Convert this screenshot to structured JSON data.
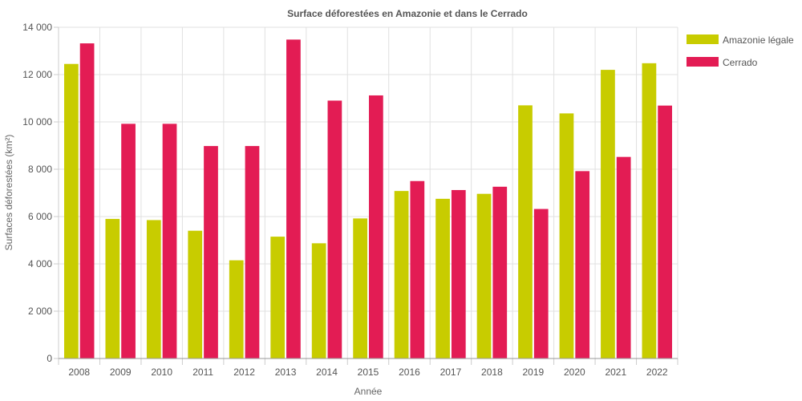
{
  "chart_data": {
    "type": "bar",
    "title": "Surface déforestées en Amazonie et dans le Cerrado",
    "xlabel": "Année",
    "ylabel": "Surfaces déforestées (km²)",
    "ylim": [
      0,
      14000
    ],
    "yticks": [
      0,
      2000,
      4000,
      6000,
      8000,
      10000,
      12000,
      14000
    ],
    "ytick_labels": [
      "0",
      "2 000",
      "4 000",
      "6 000",
      "8 000",
      "10 000",
      "12 000",
      "14 000"
    ],
    "grid": true,
    "legend_position": "top-right",
    "categories": [
      "2008",
      "2009",
      "2010",
      "2011",
      "2012",
      "2013",
      "2014",
      "2015",
      "2016",
      "2017",
      "2018",
      "2019",
      "2020",
      "2021",
      "2022"
    ],
    "series": [
      {
        "name": "Amazonie légale",
        "color": "#c8cc00",
        "values": [
          12450,
          5900,
          5850,
          5400,
          4150,
          5150,
          4870,
          5920,
          7080,
          6750,
          6960,
          10700,
          10360,
          12200,
          12480
        ]
      },
      {
        "name": "Cerrado",
        "color": "#e31c54",
        "values": [
          13320,
          9920,
          9920,
          8980,
          8980,
          13480,
          10900,
          11120,
          7500,
          7120,
          7260,
          6320,
          7920,
          8520,
          10690
        ]
      }
    ]
  }
}
